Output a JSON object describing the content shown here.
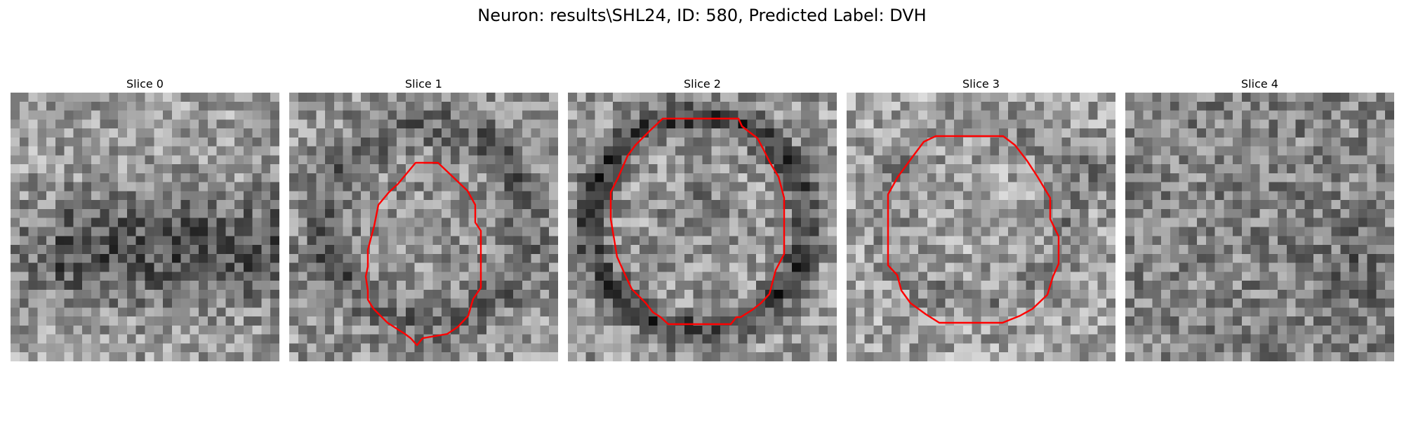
{
  "figure": {
    "title": "Neuron: results\\SHL24, ID: 580, Predicted Label: DVH",
    "contour_color": "#ff0000"
  },
  "slices": [
    {
      "title": "Slice 0",
      "has_contour": false
    },
    {
      "title": "Slice 1",
      "has_contour": true
    },
    {
      "title": "Slice 2",
      "has_contour": true
    },
    {
      "title": "Slice 3",
      "has_contour": true
    },
    {
      "title": "Slice 4",
      "has_contour": false
    }
  ]
}
